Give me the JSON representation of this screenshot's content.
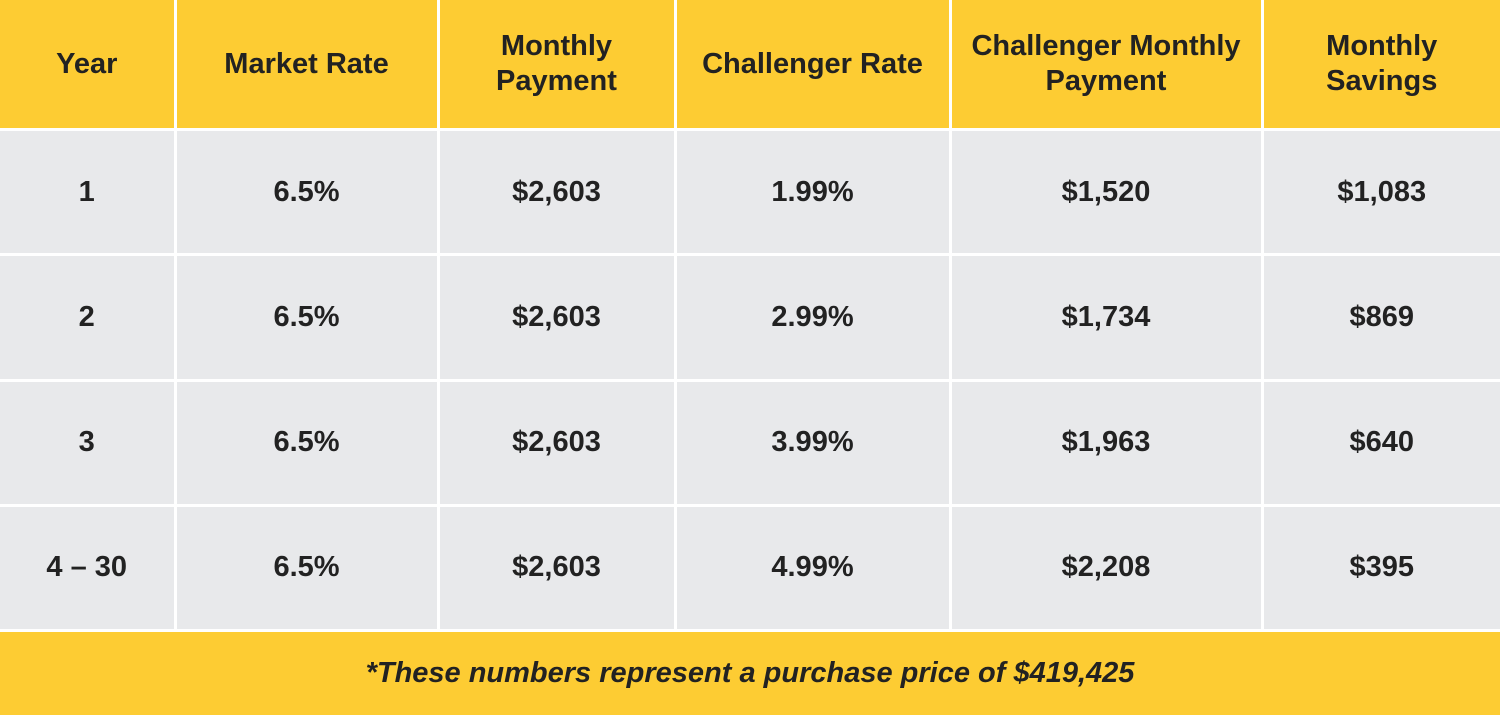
{
  "colors": {
    "header_bg": "#fdcc33",
    "row_bg": "#e8e9eb",
    "text": "#222222",
    "border": "#ffffff"
  },
  "chart_data": {
    "type": "table",
    "columns": [
      "Year",
      "Market Rate",
      "Monthly Payment",
      "Challenger Rate",
      "Challenger Monthly Payment",
      "Monthly Savings"
    ],
    "rows": [
      [
        "1",
        "6.5%",
        "$2,603",
        "1.99%",
        "$1,520",
        "$1,083"
      ],
      [
        "2",
        "6.5%",
        "$2,603",
        "2.99%",
        "$1,734",
        "$869"
      ],
      [
        "3",
        "6.5%",
        "$2,603",
        "3.99%",
        "$1,963",
        "$640"
      ],
      [
        "4 – 30",
        "6.5%",
        "$2,603",
        "4.99%",
        "$2,208",
        "$395"
      ]
    ],
    "footnote": "*These numbers represent a purchase price of $419,425"
  }
}
